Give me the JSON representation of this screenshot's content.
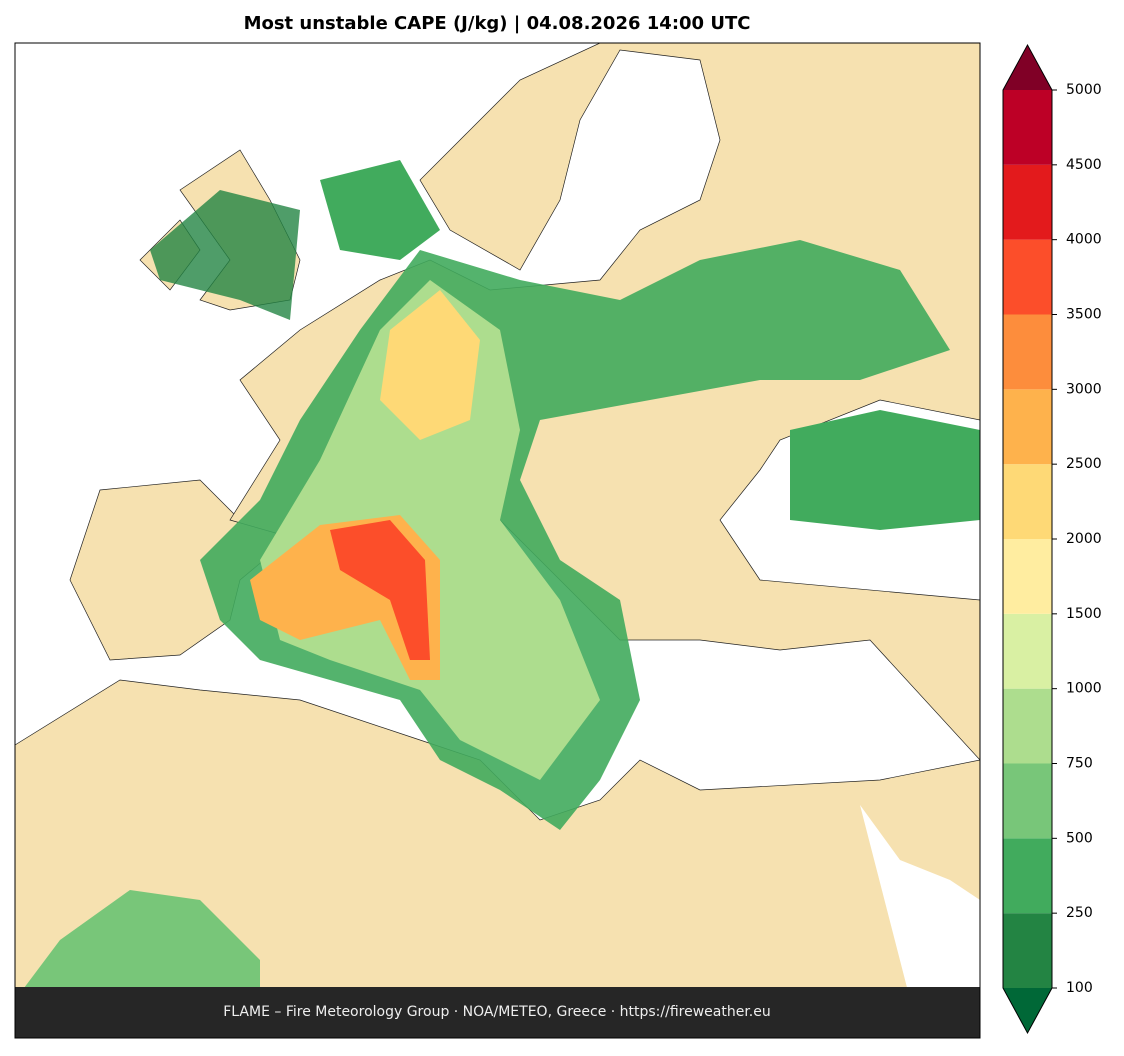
{
  "title": "Most unstable CAPE (J/kg)  |  04.08.2026 14:00 UTC",
  "footer": "FLAME – Fire Meteorology Group · NOA/METEO, Greece · https://fireweather.eu",
  "colorbar": {
    "levels": [
      100,
      250,
      500,
      750,
      1000,
      1500,
      2000,
      2500,
      3000,
      3500,
      4000,
      4500,
      5000
    ],
    "colors": [
      "#238443",
      "#41ab5d",
      "#78c679",
      "#addd8e",
      "#d9f0a3",
      "#ffeda0",
      "#fed976",
      "#feb24c",
      "#fd8d3c",
      "#fc4e2a",
      "#e31a1c",
      "#bd0026"
    ],
    "under_color": "#006837",
    "over_color": "#800026"
  }
}
